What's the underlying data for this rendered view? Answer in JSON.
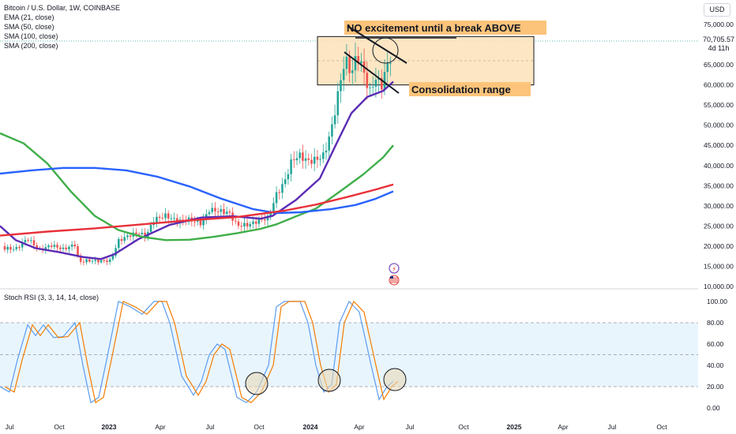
{
  "header": {
    "title": "Bitcoin / U.S. Dollar, 1W, COINBASE",
    "indicators": [
      "EMA (21, close)",
      "SMA (50, close)",
      "SMA (100, close)",
      "SMA (200, close)"
    ],
    "currency_button": "USD",
    "last_price": "70,705.57",
    "countdown": "4d 11h",
    "rsi_label": "Stoch RSI (3, 3, 14, 14, close)"
  },
  "colors": {
    "up": "#26a69a",
    "down": "#ef5350",
    "ema21": "#5b2bb5",
    "sma50": "#3fae49",
    "sma100": "#2962ff",
    "sma200": "#e8313a",
    "box_fill": "#fde2b8",
    "label_fill": "#fcc47b",
    "rsi_k": "#5b9cf0",
    "rsi_d": "#f57c00",
    "rsi_band": "#e3f2fd"
  },
  "annotations": {
    "top_note": "NO excitement until a break ABOVE",
    "range_note": "Consolidation range"
  },
  "icons": [
    "lightning-icon",
    "us-flag-icon"
  ],
  "chart_data": {
    "type": "candlestick",
    "title": "Bitcoin / U.S. Dollar, 1W, COINBASE",
    "y_ticks": [
      "75,000.00",
      "70,000.00",
      "65,000.00",
      "60,000.00",
      "55,000.00",
      "50,000.00",
      "45,000.00",
      "40,000.00",
      "35,000.00",
      "30,000.00",
      "25,000.00",
      "20,000.00",
      "15,000.00",
      "10,000.00"
    ],
    "ylim": [
      10000,
      77000
    ],
    "x_ticks": [
      "Jul",
      "Oct",
      "2023",
      "Apr",
      "Jul",
      "Oct",
      "2024",
      "Apr",
      "Jul",
      "Oct",
      "2025",
      "Apr",
      "Jul",
      "Oct"
    ],
    "consolidation_range": [
      60000,
      72000
    ],
    "series": [
      {
        "name": "EMA (21, close)",
        "points": [
          [
            0,
            25000
          ],
          [
            20,
            21500
          ],
          [
            45,
            19500
          ],
          [
            75,
            18500
          ],
          [
            105,
            17300
          ],
          [
            128,
            16800
          ],
          [
            145,
            18000
          ],
          [
            175,
            21700
          ],
          [
            215,
            25300
          ],
          [
            255,
            27100
          ],
          [
            295,
            27400
          ],
          [
            330,
            26800
          ],
          [
            345,
            27500
          ],
          [
            375,
            31500
          ],
          [
            405,
            36800
          ],
          [
            425,
            45000
          ],
          [
            445,
            53000
          ],
          [
            465,
            57000
          ],
          [
            485,
            58500
          ],
          [
            498,
            60800
          ]
        ]
      },
      {
        "name": "SMA (50, close)",
        "points": [
          [
            0,
            48000
          ],
          [
            30,
            45500
          ],
          [
            60,
            40500
          ],
          [
            90,
            33500
          ],
          [
            120,
            27500
          ],
          [
            150,
            24000
          ],
          [
            180,
            22300
          ],
          [
            210,
            21500
          ],
          [
            240,
            21600
          ],
          [
            270,
            22300
          ],
          [
            300,
            23200
          ],
          [
            330,
            24300
          ],
          [
            350,
            25400
          ],
          [
            375,
            27400
          ],
          [
            400,
            29300
          ],
          [
            430,
            33500
          ],
          [
            460,
            37800
          ],
          [
            485,
            42000
          ],
          [
            498,
            45000
          ]
        ]
      },
      {
        "name": "SMA (100, close)",
        "points": [
          [
            0,
            38000
          ],
          [
            40,
            38800
          ],
          [
            80,
            39400
          ],
          [
            120,
            39400
          ],
          [
            160,
            38800
          ],
          [
            200,
            37200
          ],
          [
            240,
            34800
          ],
          [
            280,
            31800
          ],
          [
            320,
            29200
          ],
          [
            350,
            28200
          ],
          [
            380,
            28400
          ],
          [
            420,
            29200
          ],
          [
            450,
            30200
          ],
          [
            475,
            31700
          ],
          [
            498,
            33600
          ]
        ]
      },
      {
        "name": "SMA (200, close)",
        "points": [
          [
            0,
            22600
          ],
          [
            60,
            23600
          ],
          [
            120,
            24400
          ],
          [
            180,
            25400
          ],
          [
            240,
            26400
          ],
          [
            300,
            27200
          ],
          [
            360,
            28800
          ],
          [
            400,
            30300
          ],
          [
            440,
            32200
          ],
          [
            475,
            34000
          ],
          [
            498,
            35300
          ]
        ]
      }
    ],
    "stoch_rsi": {
      "y_ticks": [
        "100.00",
        "80.00",
        "60.00",
        "40.00",
        "20.00",
        "0.00"
      ],
      "bands": [
        20,
        50,
        80
      ],
      "ylim": [
        0,
        100
      ]
    }
  }
}
